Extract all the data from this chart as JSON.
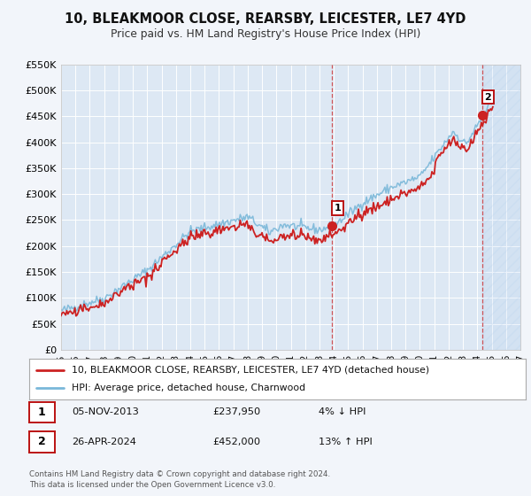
{
  "title": "10, BLEAKMOOR CLOSE, REARSBY, LEICESTER, LE7 4YD",
  "subtitle": "Price paid vs. HM Land Registry's House Price Index (HPI)",
  "hpi_color": "#7ab8d9",
  "price_color": "#cc2222",
  "background_color": "#f2f5fa",
  "plot_bg_color": "#dde8f4",
  "grid_color": "#ffffff",
  "xmin": 1995,
  "xmax": 2027,
  "ymin": 0,
  "ymax": 550000,
  "yticks": [
    0,
    50000,
    100000,
    150000,
    200000,
    250000,
    300000,
    350000,
    400000,
    450000,
    500000,
    550000
  ],
  "ytick_labels": [
    "£0",
    "£50K",
    "£100K",
    "£150K",
    "£200K",
    "£250K",
    "£300K",
    "£350K",
    "£400K",
    "£450K",
    "£500K",
    "£550K"
  ],
  "xticks": [
    1995,
    1996,
    1997,
    1998,
    1999,
    2000,
    2001,
    2002,
    2003,
    2004,
    2005,
    2006,
    2007,
    2008,
    2009,
    2010,
    2011,
    2012,
    2013,
    2014,
    2015,
    2016,
    2017,
    2018,
    2019,
    2020,
    2021,
    2022,
    2023,
    2024,
    2025,
    2026,
    2027
  ],
  "sale1_x": 2013.85,
  "sale1_y": 237950,
  "sale2_x": 2024.33,
  "sale2_y": 452000,
  "legend_label1": "10, BLEAKMOOR CLOSE, REARSBY, LEICESTER, LE7 4YD (detached house)",
  "legend_label2": "HPI: Average price, detached house, Charnwood",
  "sale1_date": "05-NOV-2013",
  "sale1_price": "£237,950",
  "sale1_hpi": "4% ↓ HPI",
  "sale2_date": "26-APR-2024",
  "sale2_price": "£452,000",
  "sale2_hpi": "13% ↑ HPI",
  "footer1": "Contains HM Land Registry data © Crown copyright and database right 2024.",
  "footer2": "This data is licensed under the Open Government Licence v3.0."
}
